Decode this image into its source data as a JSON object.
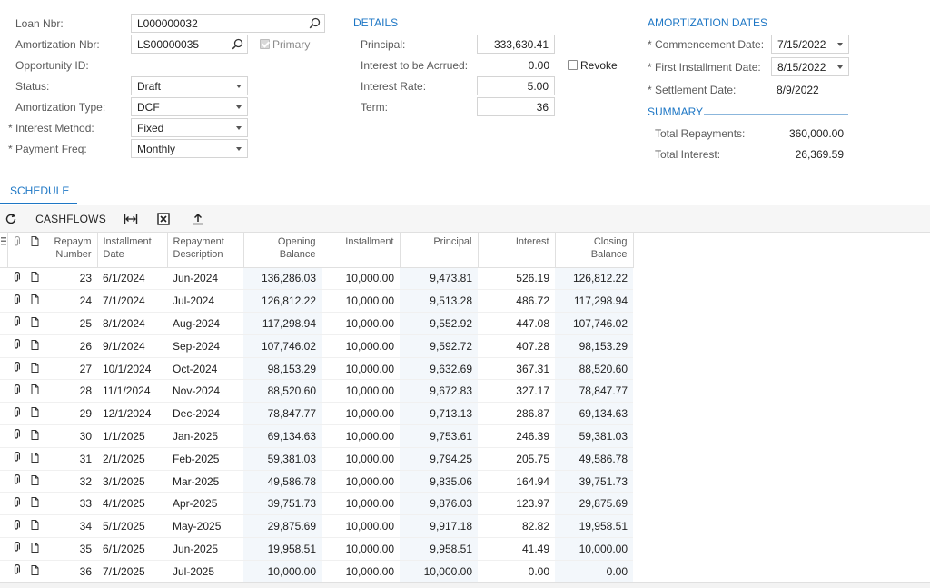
{
  "form": {
    "loan_nbr_label": "Loan Nbr:",
    "loan_nbr_value": "L000000032",
    "amort_nbr_label": "Amortization Nbr:",
    "amort_nbr_value": "LS00000035",
    "primary_label": "Primary",
    "opportunity_label": "Opportunity ID:",
    "status_label": "Status:",
    "status_value": "Draft",
    "amort_type_label": "Amortization Type:",
    "amort_type_value": "DCF",
    "interest_method_label": "Interest Method:",
    "interest_method_value": "Fixed",
    "payment_freq_label": "Payment Freq:",
    "payment_freq_value": "Monthly"
  },
  "details": {
    "title": "DETAILS",
    "principal_label": "Principal:",
    "principal_value": "333,630.41",
    "accrued_label": "Interest to be Acrrued:",
    "accrued_value": "0.00",
    "revoke_label": "Revoke",
    "rate_label": "Interest Rate:",
    "rate_value": "5.00",
    "term_label": "Term:",
    "term_value": "36"
  },
  "dates": {
    "title": "AMORTIZATION DATES",
    "commencement_label": "Commencement Date:",
    "commencement_value": "7/15/2022",
    "first_inst_label": "First Installment Date:",
    "first_inst_value": "8/15/2022",
    "settlement_label": "Settlement Date:",
    "settlement_value": "8/9/2022"
  },
  "summary": {
    "title": "SUMMARY",
    "total_repay_label": "Total Repayments:",
    "total_repay_value": "360,000.00",
    "total_interest_label": "Total Interest:",
    "total_interest_value": "26,369.59"
  },
  "tabs": {
    "schedule": "SCHEDULE"
  },
  "toolbar": {
    "cashflows": "CASHFLOWS"
  },
  "columns": {
    "number_1": "Repaym",
    "number_2": "Number",
    "inst_date_1": "Installment",
    "inst_date_2": "Date",
    "desc_1": "Repayment",
    "desc_2": "Description",
    "opening_1": "Opening",
    "opening_2": "Balance",
    "installment": "Installment",
    "principal": "Principal",
    "interest": "Interest",
    "closing_1": "Closing",
    "closing_2": "Balance"
  },
  "rows": [
    {
      "n": "23",
      "date": "6/1/2024",
      "desc": "Jun-2024",
      "open": "136,286.03",
      "inst": "10,000.00",
      "prin": "9,473.81",
      "int": "526.19",
      "close": "126,812.22"
    },
    {
      "n": "24",
      "date": "7/1/2024",
      "desc": "Jul-2024",
      "open": "126,812.22",
      "inst": "10,000.00",
      "prin": "9,513.28",
      "int": "486.72",
      "close": "117,298.94"
    },
    {
      "n": "25",
      "date": "8/1/2024",
      "desc": "Aug-2024",
      "open": "117,298.94",
      "inst": "10,000.00",
      "prin": "9,552.92",
      "int": "447.08",
      "close": "107,746.02"
    },
    {
      "n": "26",
      "date": "9/1/2024",
      "desc": "Sep-2024",
      "open": "107,746.02",
      "inst": "10,000.00",
      "prin": "9,592.72",
      "int": "407.28",
      "close": "98,153.29"
    },
    {
      "n": "27",
      "date": "10/1/2024",
      "desc": "Oct-2024",
      "open": "98,153.29",
      "inst": "10,000.00",
      "prin": "9,632.69",
      "int": "367.31",
      "close": "88,520.60"
    },
    {
      "n": "28",
      "date": "11/1/2024",
      "desc": "Nov-2024",
      "open": "88,520.60",
      "inst": "10,000.00",
      "prin": "9,672.83",
      "int": "327.17",
      "close": "78,847.77"
    },
    {
      "n": "29",
      "date": "12/1/2024",
      "desc": "Dec-2024",
      "open": "78,847.77",
      "inst": "10,000.00",
      "prin": "9,713.13",
      "int": "286.87",
      "close": "69,134.63"
    },
    {
      "n": "30",
      "date": "1/1/2025",
      "desc": "Jan-2025",
      "open": "69,134.63",
      "inst": "10,000.00",
      "prin": "9,753.61",
      "int": "246.39",
      "close": "59,381.03"
    },
    {
      "n": "31",
      "date": "2/1/2025",
      "desc": "Feb-2025",
      "open": "59,381.03",
      "inst": "10,000.00",
      "prin": "9,794.25",
      "int": "205.75",
      "close": "49,586.78"
    },
    {
      "n": "32",
      "date": "3/1/2025",
      "desc": "Mar-2025",
      "open": "49,586.78",
      "inst": "10,000.00",
      "prin": "9,835.06",
      "int": "164.94",
      "close": "39,751.73"
    },
    {
      "n": "33",
      "date": "4/1/2025",
      "desc": "Apr-2025",
      "open": "39,751.73",
      "inst": "10,000.00",
      "prin": "9,876.03",
      "int": "123.97",
      "close": "29,875.69"
    },
    {
      "n": "34",
      "date": "5/1/2025",
      "desc": "May-2025",
      "open": "29,875.69",
      "inst": "10,000.00",
      "prin": "9,917.18",
      "int": "82.82",
      "close": "19,958.51"
    },
    {
      "n": "35",
      "date": "6/1/2025",
      "desc": "Jun-2025",
      "open": "19,958.51",
      "inst": "10,000.00",
      "prin": "9,958.51",
      "int": "41.49",
      "close": "10,000.00"
    },
    {
      "n": "36",
      "date": "7/1/2025",
      "desc": "Jul-2025",
      "open": "10,000.00",
      "inst": "10,000.00",
      "prin": "10,000.00",
      "int": "0.00",
      "close": "0.00"
    }
  ],
  "colors": {
    "accent": "#1e77c5",
    "row_shade": "#f3f7fb"
  }
}
